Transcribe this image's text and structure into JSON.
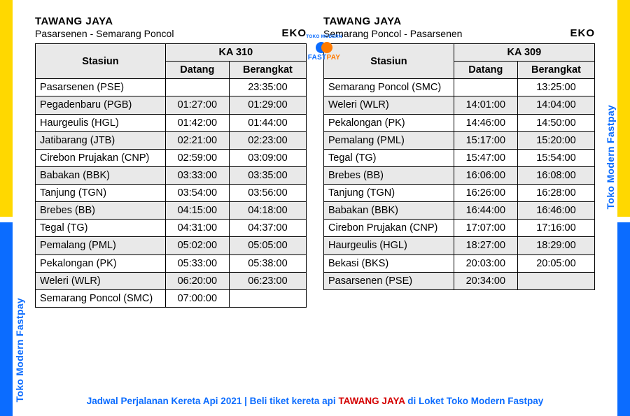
{
  "brand": "Toko Modern Fastpay",
  "logo": {
    "top": "TOKO MODERN",
    "fast": "FAST",
    "pay": "PAY"
  },
  "footer": {
    "pre": "Jadwal Perjalanan Kereta Api 2021 | Beli tiket kereta api ",
    "train": "TAWANG JAYA",
    "post": " di Loket Toko Modern Fastpay"
  },
  "headers": {
    "stasiun": "Stasiun",
    "datang": "Datang",
    "berangkat": "Berangkat"
  },
  "left": {
    "title": "TAWANG JAYA",
    "route": "Pasarsenen - Semarang Poncol",
    "class": "EKO",
    "train_no": "KA 310",
    "rows": [
      {
        "st": "Pasarsenen (PSE)",
        "d": "",
        "b": "23:35:00",
        "shade": false
      },
      {
        "st": "Pegadenbaru (PGB)",
        "d": "01:27:00",
        "b": "01:29:00",
        "shade": true
      },
      {
        "st": "Haurgeulis (HGL)",
        "d": "01:42:00",
        "b": "01:44:00",
        "shade": false
      },
      {
        "st": "Jatibarang (JTB)",
        "d": "02:21:00",
        "b": "02:23:00",
        "shade": true
      },
      {
        "st": "Cirebon Prujakan (CNP)",
        "d": "02:59:00",
        "b": "03:09:00",
        "shade": false
      },
      {
        "st": "Babakan (BBK)",
        "d": "03:33:00",
        "b": "03:35:00",
        "shade": true
      },
      {
        "st": "Tanjung (TGN)",
        "d": "03:54:00",
        "b": "03:56:00",
        "shade": false
      },
      {
        "st": "Brebes (BB)",
        "d": "04:15:00",
        "b": "04:18:00",
        "shade": true
      },
      {
        "st": "Tegal (TG)",
        "d": "04:31:00",
        "b": "04:37:00",
        "shade": false
      },
      {
        "st": "Pemalang (PML)",
        "d": "05:02:00",
        "b": "05:05:00",
        "shade": true
      },
      {
        "st": "Pekalongan (PK)",
        "d": "05:33:00",
        "b": "05:38:00",
        "shade": false
      },
      {
        "st": "Weleri (WLR)",
        "d": "06:20:00",
        "b": "06:23:00",
        "shade": true
      },
      {
        "st": "Semarang Poncol (SMC)",
        "d": "07:00:00",
        "b": "",
        "shade": false
      }
    ]
  },
  "right": {
    "title": "TAWANG JAYA",
    "route": "Semarang Poncol - Pasarsenen",
    "class": "EKO",
    "train_no": "KA 309",
    "rows": [
      {
        "st": "Semarang Poncol (SMC)",
        "d": "",
        "b": "13:25:00",
        "shade": false
      },
      {
        "st": "Weleri (WLR)",
        "d": "14:01:00",
        "b": "14:04:00",
        "shade": true
      },
      {
        "st": "Pekalongan (PK)",
        "d": "14:46:00",
        "b": "14:50:00",
        "shade": false
      },
      {
        "st": "Pemalang (PML)",
        "d": "15:17:00",
        "b": "15:20:00",
        "shade": true
      },
      {
        "st": "Tegal (TG)",
        "d": "15:47:00",
        "b": "15:54:00",
        "shade": false
      },
      {
        "st": "Brebes (BB)",
        "d": "16:06:00",
        "b": "16:08:00",
        "shade": true
      },
      {
        "st": "Tanjung (TGN)",
        "d": "16:26:00",
        "b": "16:28:00",
        "shade": false
      },
      {
        "st": "Babakan (BBK)",
        "d": "16:44:00",
        "b": "16:46:00",
        "shade": true
      },
      {
        "st": "Cirebon Prujakan (CNP)",
        "d": "17:07:00",
        "b": "17:16:00",
        "shade": false
      },
      {
        "st": "Haurgeulis (HGL)",
        "d": "18:27:00",
        "b": "18:29:00",
        "shade": true
      },
      {
        "st": "Bekasi (BKS)",
        "d": "20:03:00",
        "b": "20:05:00",
        "shade": false
      },
      {
        "st": "Pasarsenen (PSE)",
        "d": "20:34:00",
        "b": "",
        "shade": true
      }
    ]
  }
}
